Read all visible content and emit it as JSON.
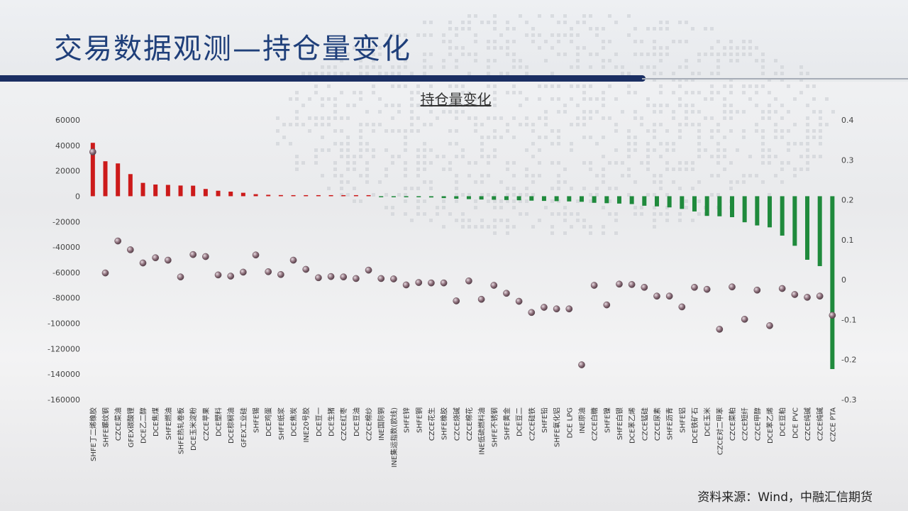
{
  "page": {
    "title": "交易数据观测—持仓量变化",
    "source": "资料来源：Wind，中融汇信期货"
  },
  "chart_data": {
    "type": "bar",
    "title": "持仓量变化",
    "categories": [
      "SHFE丁二烯橡胶",
      "SHFE螺纹钢",
      "CZCE菜油",
      "GFEX碳酸锂",
      "DCE乙二醇",
      "DCE焦煤",
      "SHFE燃油",
      "SHFE热轧卷板",
      "DCE玉米淀粉",
      "CZCE苹果",
      "DCE塑料",
      "DCE棕榈油",
      "GFEX工业硅",
      "SHFE锡",
      "DCE鸡蛋",
      "SHFE纸浆",
      "DCE焦炭",
      "INE20号胶",
      "DCE豆一",
      "DCE生猪",
      "CZCE红枣",
      "DCE豆油",
      "CZCE棉纱",
      "INE国际铜",
      "INE集运指数(欧线)",
      "SHFE锌",
      "SHFE铜",
      "CZCE花生",
      "SHFE橡胶",
      "CZCE烧碱",
      "CZCE棉花",
      "INE低硫燃料油",
      "SHFE不锈钢",
      "SHFE黄金",
      "DCE豆二",
      "CZCE硅铁",
      "SHFE铅",
      "SHFE氧化铝",
      "DCE LPG",
      "INE原油",
      "CZCE白糖",
      "SHFE镍",
      "SHFE白银",
      "DCE苯乙烯",
      "CZCE锰硅",
      "CZCE尿素",
      "SHFE沥青",
      "SHFE铝",
      "DCE铁矿石",
      "DCE玉米",
      "CZCE对二甲苯",
      "CZCE菜粕",
      "CZCE短纤",
      "CZCE甲醇",
      "DCE苯乙烯",
      "DCE豆粕",
      "DCE PVC",
      "CZCE纯碱",
      "CZCE纯碱",
      "CZCE PTA"
    ],
    "series": [
      {
        "values": [
          42000,
          27500,
          25800,
          17400,
          10500,
          9200,
          8900,
          8400,
          8300,
          5700,
          4300,
          3600,
          2700,
          1600,
          1100,
          900,
          700,
          500,
          400,
          300,
          250,
          200,
          100,
          -200,
          -300,
          -600,
          -800,
          -1000,
          -1500,
          -2000,
          -2300,
          -2600,
          -2800,
          -3000,
          -3200,
          -3500,
          -3700,
          -3900,
          -4100,
          -4400,
          -5200,
          -5500,
          -5800,
          -6200,
          -7500,
          -8000,
          -8800,
          -10000,
          -12000,
          -15500,
          -15800,
          -16500,
          -20500,
          -23000,
          -24500,
          -31000,
          -39000,
          -50000,
          -55000,
          -136000
        ]
      },
      {
        "values": [
          0.32,
          0.017,
          0.097,
          0.075,
          0.042,
          0.055,
          0.049,
          0.007,
          0.063,
          0.058,
          0.012,
          0.009,
          0.019,
          0.062,
          0.02,
          0.013,
          0.049,
          0.026,
          0.005,
          0.008,
          0.007,
          0.003,
          0.024,
          0.003,
          0.002,
          -0.013,
          -0.007,
          -0.008,
          -0.008,
          -0.053,
          -0.003,
          -0.049,
          -0.014,
          -0.034,
          -0.054,
          -0.082,
          -0.069,
          -0.073,
          -0.073,
          -0.213,
          -0.014,
          -0.063,
          -0.011,
          -0.012,
          -0.019,
          -0.041,
          -0.041,
          -0.068,
          -0.019,
          -0.024,
          -0.124,
          -0.018,
          -0.099,
          -0.026,
          -0.115,
          -0.022,
          -0.037,
          -0.044,
          -0.041,
          -0.089
        ]
      }
    ],
    "ylim": [
      -160000,
      60000
    ],
    "yticks": [
      "60000",
      "40000",
      "20000",
      "0",
      "-20000",
      "-40000",
      "-60000",
      "-80000",
      "-100000",
      "-120000",
      "-140000",
      "-160000"
    ],
    "y2lim": [
      -0.3,
      0.4
    ],
    "y2ticks": [
      "0.4",
      "0.3",
      "0.2",
      "0.1",
      "0",
      "-0.1",
      "-0.2",
      "-0.3"
    ],
    "colors": {
      "positive": "#cc1a1a",
      "negative": "#1f8a3c",
      "dot": "#7a5c66"
    },
    "grid": false,
    "legend": "none"
  }
}
